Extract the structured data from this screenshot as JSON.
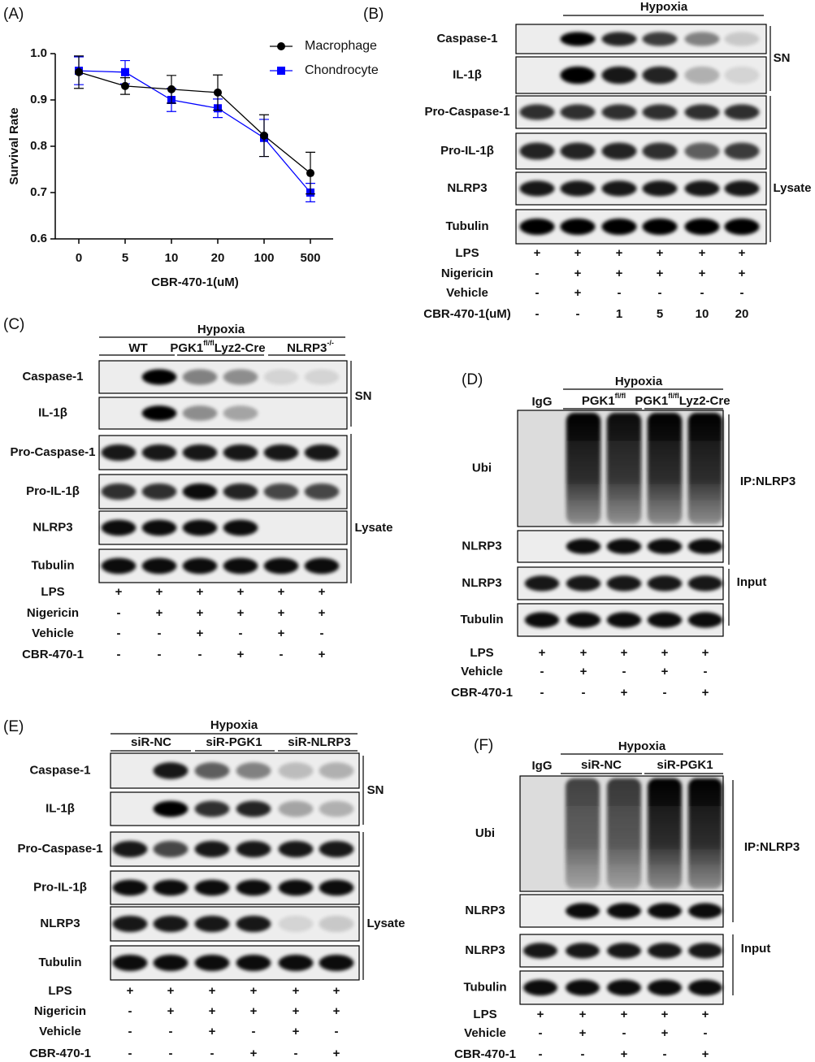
{
  "chart_data": {
    "type": "line",
    "panel": "(A)",
    "xlabel": "CBR-470-1(uM)",
    "ylabel": "Survival Rate",
    "categories": [
      "0",
      "5",
      "10",
      "20",
      "100",
      "500"
    ],
    "series": [
      {
        "name": "Macrophage",
        "color": "#000000",
        "marker": "circle",
        "values": [
          0.96,
          0.93,
          0.923,
          0.916,
          0.823,
          0.742
        ],
        "errors": [
          0.035,
          0.018,
          0.03,
          0.038,
          0.045,
          0.045
        ]
      },
      {
        "name": "Chondrocyte",
        "color": "#0000ff",
        "marker": "square",
        "values": [
          0.963,
          0.96,
          0.9,
          0.882,
          0.818,
          0.7
        ],
        "errors": [
          0.03,
          0.025,
          0.025,
          0.02,
          0.04,
          0.02
        ]
      }
    ],
    "ylim": [
      0.6,
      1.0
    ],
    "yticks": [
      0.6,
      0.7,
      0.8,
      0.9,
      {
        "value": 1.0,
        "label": "1.0"
      }
    ],
    "legend": "upper right"
  },
  "panels": [
    {
      "label": "(B)",
      "header": {
        "title": "Hypoxia",
        "groups": []
      },
      "rows": [
        "Caspase-1",
        "IL-1β",
        "Pro-Caspase-1",
        "Pro-IL-1β",
        "NLRP3",
        "Tubulin"
      ],
      "brackets": [
        "SN",
        "Lysate"
      ],
      "treatments": [
        {
          "name": "LPS",
          "values": [
            "+",
            "+",
            "+",
            "+",
            "+",
            "+"
          ]
        },
        {
          "name": "Nigericin",
          "values": [
            "-",
            "+",
            "+",
            "+",
            "+",
            "+"
          ]
        },
        {
          "name": "Vehicle",
          "values": [
            "-",
            "+",
            "-",
            "-",
            "-",
            "-"
          ]
        },
        {
          "name": "CBR-470-1(uM)",
          "values": [
            "-",
            "-",
            "1",
            "5",
            "10",
            "20"
          ]
        }
      ]
    },
    {
      "label": "(C)",
      "header": {
        "title": "Hypoxia",
        "groups": [
          {
            "label": [
              {
                "text": "WT"
              }
            ]
          },
          {
            "label": [
              {
                "text": "PGK1"
              },
              {
                "sup": "fl/fl"
              },
              {
                "text": "Lyz2-Cre"
              }
            ]
          },
          {
            "label": [
              {
                "text": "NLRP3"
              },
              {
                "sup": "-/-"
              }
            ]
          }
        ]
      },
      "rows": [
        "Caspase-1",
        "IL-1β",
        "Pro-Caspase-1",
        "Pro-IL-1β",
        "NLRP3",
        "Tubulin"
      ],
      "brackets": [
        "SN",
        "Lysate"
      ],
      "treatments": [
        {
          "name": "LPS",
          "values": [
            "+",
            "+",
            "+",
            "+",
            "+",
            "+"
          ]
        },
        {
          "name": "Nigericin",
          "values": [
            "-",
            "+",
            "+",
            "+",
            "+",
            "+"
          ]
        },
        {
          "name": "Vehicle",
          "values": [
            "-",
            "-",
            "+",
            "-",
            "+",
            "-"
          ]
        },
        {
          "name": "CBR-470-1",
          "values": [
            "-",
            "-",
            "-",
            "+",
            "-",
            "+"
          ]
        }
      ]
    },
    {
      "label": "(D)",
      "control": "IgG",
      "header": {
        "title": "Hypoxia",
        "groups": [
          {
            "label": [
              {
                "text": "PGK1"
              },
              {
                "sup": "fl/fl"
              }
            ]
          },
          {
            "label": [
              {
                "text": "PGK1"
              },
              {
                "sup": "fl/fl"
              },
              {
                "text": "Lyz2-Cre"
              }
            ]
          }
        ]
      },
      "rows": [
        "Ubi",
        "NLRP3",
        "NLRP3",
        "Tubulin"
      ],
      "brackets": [
        "IP:NLRP3",
        "Input"
      ],
      "treatments": [
        {
          "name": "LPS",
          "values": [
            "+",
            "+",
            "+",
            "+",
            "+"
          ]
        },
        {
          "name": "Vehicle",
          "values": [
            "-",
            "+",
            "-",
            "+",
            "-"
          ]
        },
        {
          "name": "CBR-470-1",
          "values": [
            "-",
            "-",
            "+",
            "-",
            "+"
          ]
        }
      ]
    },
    {
      "label": "(E)",
      "header": {
        "title": "Hypoxia",
        "groups": [
          {
            "label": [
              {
                "text": "siR-NC"
              }
            ]
          },
          {
            "label": [
              {
                "text": "siR-PGK1"
              }
            ]
          },
          {
            "label": [
              {
                "text": "siR-NLRP3"
              }
            ]
          }
        ]
      },
      "rows": [
        "Caspase-1",
        "IL-1β",
        "Pro-Caspase-1",
        "Pro-IL-1β",
        "NLRP3",
        "Tubulin"
      ],
      "brackets": [
        "SN",
        "Lysate"
      ],
      "treatments": [
        {
          "name": "LPS",
          "values": [
            "+",
            "+",
            "+",
            "+",
            "+",
            "+"
          ]
        },
        {
          "name": "Nigericin",
          "values": [
            "-",
            "+",
            "+",
            "+",
            "+",
            "+"
          ]
        },
        {
          "name": "Vehicle",
          "values": [
            "-",
            "-",
            "+",
            "-",
            "+",
            "-"
          ]
        },
        {
          "name": "CBR-470-1",
          "values": [
            "-",
            "-",
            "-",
            "+",
            "-",
            "+"
          ]
        }
      ]
    },
    {
      "label": "(F)",
      "control": "IgG",
      "header": {
        "title": "Hypoxia",
        "groups": [
          {
            "label": [
              {
                "text": "siR-NC"
              }
            ]
          },
          {
            "label": [
              {
                "text": "siR-PGK1"
              }
            ]
          }
        ]
      },
      "rows": [
        "Ubi",
        "NLRP3",
        "NLRP3",
        "Tubulin"
      ],
      "brackets": [
        "IP:NLRP3",
        "Input"
      ],
      "treatments": [
        {
          "name": "LPS",
          "values": [
            "+",
            "+",
            "+",
            "+",
            "+"
          ]
        },
        {
          "name": "Vehicle",
          "values": [
            "-",
            "+",
            "-",
            "+",
            "-"
          ]
        },
        {
          "name": "CBR-470-1",
          "values": [
            "-",
            "-",
            "+",
            "-",
            "+"
          ]
        }
      ]
    }
  ]
}
